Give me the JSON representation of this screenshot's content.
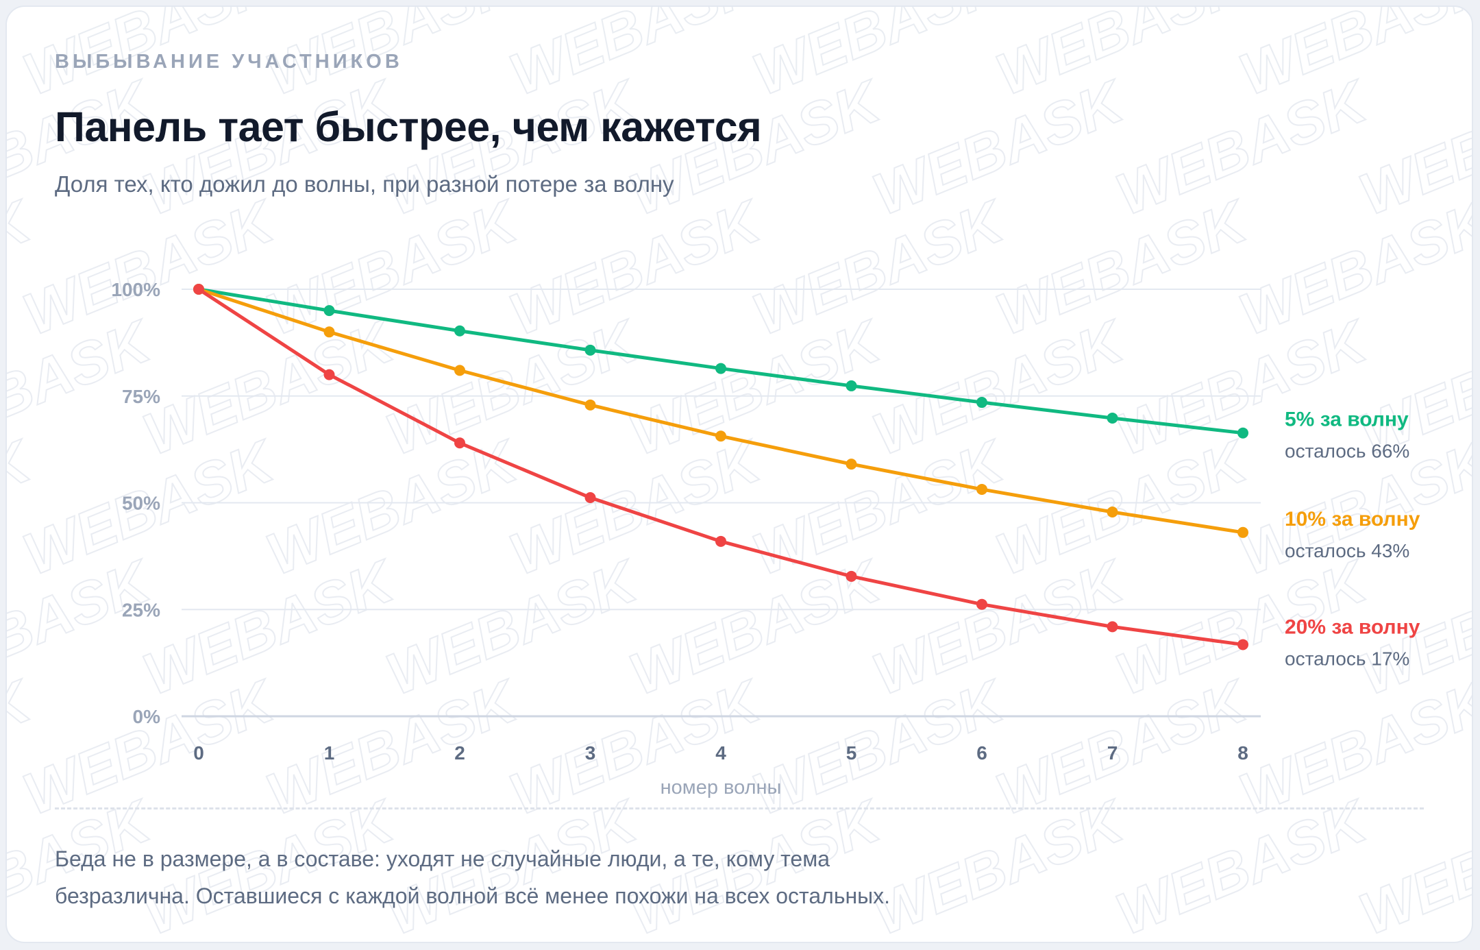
{
  "header": {
    "eyebrow": "ВЫБЫВАНИЕ УЧАСТНИКОВ",
    "title": "Панель тает быстрее, чем кажется",
    "subtitle": "Доля тех, кто дожил до волны, при разной потере за волну"
  },
  "watermark": {
    "text": "WEBASK",
    "color": "#d8dee8"
  },
  "note": {
    "line1": "Беда не в размере, а в составе: уходят не случайные люди, а те, кому тема",
    "line2": "безразлична. Оставшиеся с каждой волной всё менее похожи на всех остальных."
  },
  "chart_data": {
    "type": "line",
    "xlabel": "номер волны",
    "ylabel": "",
    "x": [
      0,
      1,
      2,
      3,
      4,
      5,
      6,
      7,
      8
    ],
    "xlim": [
      0,
      8
    ],
    "ylim": [
      0,
      100
    ],
    "yticks": [
      0,
      25,
      50,
      75,
      100
    ],
    "ytick_labels": [
      "0%",
      "25%",
      "50%",
      "75%",
      "100%"
    ],
    "grid": true,
    "series": [
      {
        "name": "5% за волну",
        "end_label": "осталось 66%",
        "color": "#10b981",
        "values": [
          100,
          95,
          90.25,
          85.74,
          81.45,
          77.38,
          73.51,
          69.83,
          66.34
        ]
      },
      {
        "name": "10% за волну",
        "end_label": "осталось 43%",
        "color": "#f59e0b",
        "values": [
          100,
          90,
          81,
          72.9,
          65.61,
          59.05,
          53.14,
          47.83,
          43.05
        ]
      },
      {
        "name": "20% за волну",
        "end_label": "осталось 17%",
        "color": "#ef4444",
        "values": [
          100,
          80,
          64,
          51.2,
          40.96,
          32.77,
          26.21,
          20.97,
          16.78
        ]
      }
    ]
  }
}
